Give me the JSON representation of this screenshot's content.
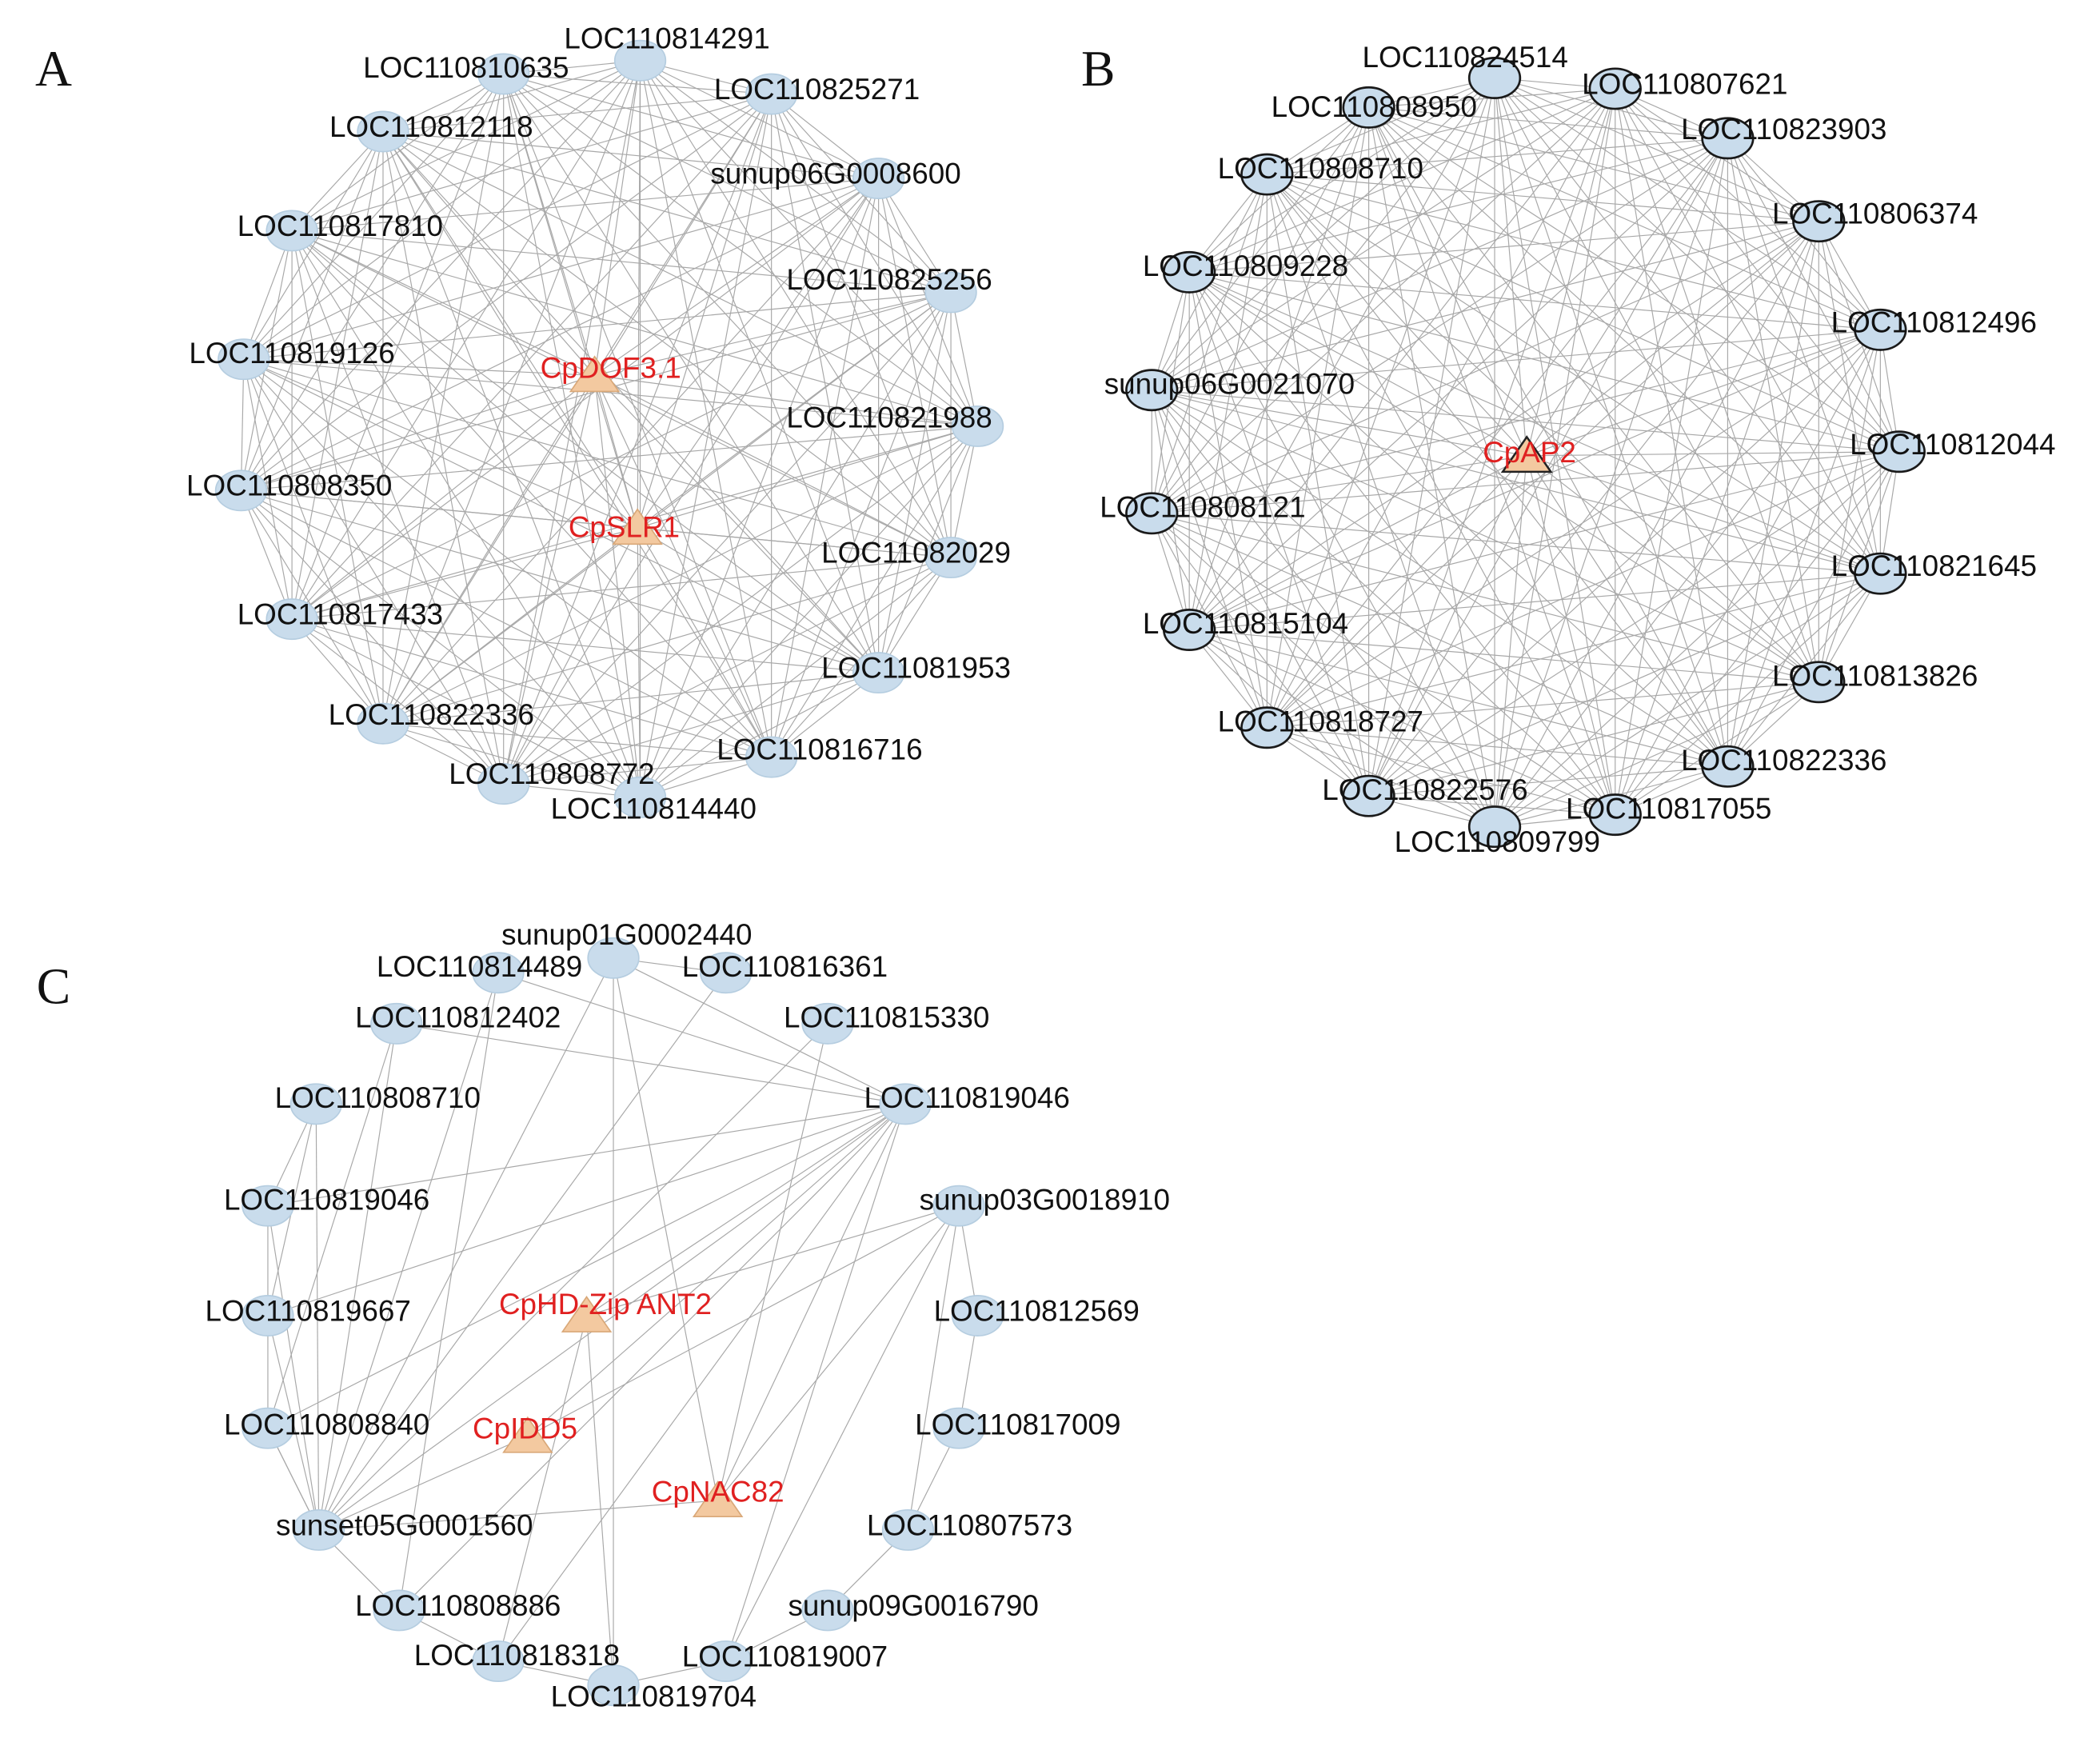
{
  "panels": [
    {
      "label": "A",
      "nodes": [
        {
          "label": "LOC110814291"
        },
        {
          "label": "LOC110810635"
        },
        {
          "label": "LOC110825271"
        },
        {
          "label": "LOC110812118"
        },
        {
          "label": "sunup06G0008600"
        },
        {
          "label": "LOC110817810"
        },
        {
          "label": "LOC110825256"
        },
        {
          "label": "LOC110819126"
        },
        {
          "label": "CpDOF3.1"
        },
        {
          "label": "LOC110821988"
        },
        {
          "label": "LOC110808350"
        },
        {
          "label": "CpSLR1"
        },
        {
          "label": "LOC11082029"
        },
        {
          "label": "LOC110817433"
        },
        {
          "label": "LOC11081953"
        },
        {
          "label": "LOC110822336"
        },
        {
          "label": "LOC110816716"
        },
        {
          "label": "LOC110808772"
        },
        {
          "label": "LOC110814440"
        }
      ]
    },
    {
      "label": "B",
      "nodes": [
        {
          "label": "LOC110824514"
        },
        {
          "label": "LOC110807621"
        },
        {
          "label": "LOC110808950"
        },
        {
          "label": "LOC110823903"
        },
        {
          "label": "LOC110808710"
        },
        {
          "label": "LOC110806374"
        },
        {
          "label": "LOC110809228"
        },
        {
          "label": "LOC110812496"
        },
        {
          "label": "sunup06G0021070"
        },
        {
          "label": "LOC110812044"
        },
        {
          "label": "CpAP2"
        },
        {
          "label": "LOC110808121"
        },
        {
          "label": "LOC110821645"
        },
        {
          "label": "LOC110815104"
        },
        {
          "label": "LOC110813826"
        },
        {
          "label": "LOC110818727"
        },
        {
          "label": "LOC110822336"
        },
        {
          "label": "LOC110822576"
        },
        {
          "label": "LOC110817055"
        },
        {
          "label": "LOC110809799"
        }
      ]
    },
    {
      "label": "C",
      "nodes": [
        {
          "label": "sunup01G0002440"
        },
        {
          "label": "LOC110814489"
        },
        {
          "label": "LOC110816361"
        },
        {
          "label": "LOC110812402"
        },
        {
          "label": "LOC110815330"
        },
        {
          "label": "LOC110808710"
        },
        {
          "label": "LOC110819046"
        },
        {
          "label": "LOC110819046"
        },
        {
          "label": "sunup03G0018910"
        },
        {
          "label": "LOC110819667"
        },
        {
          "label": "CpHD-Zip ANT2"
        },
        {
          "label": "LOC110812569"
        },
        {
          "label": "LOC110808840"
        },
        {
          "label": "CpIDD5"
        },
        {
          "label": "LOC110817009"
        },
        {
          "label": "CpNAC82"
        },
        {
          "label": "sunset05G0001560"
        },
        {
          "label": "LOC110807573"
        },
        {
          "label": "LOC110808886"
        },
        {
          "label": "sunup09G0016790"
        },
        {
          "label": "LOC110818318"
        },
        {
          "label": "LOC110819007"
        },
        {
          "label": "LOC110819704"
        }
      ]
    }
  ]
}
